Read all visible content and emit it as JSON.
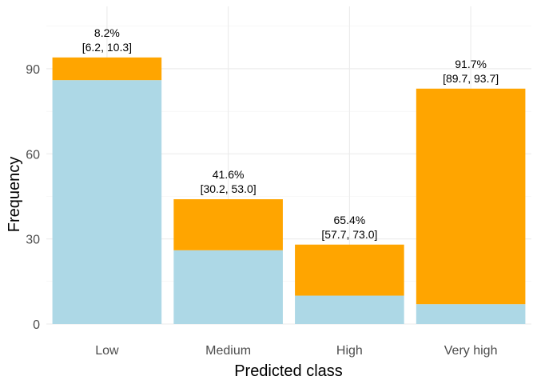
{
  "chart_data": {
    "type": "bar",
    "stacked": true,
    "categories": [
      "Low",
      "Medium",
      "High",
      "Very high"
    ],
    "series": [
      {
        "name": "",
        "color": "#add8e6",
        "values": [
          86,
          26,
          10,
          7
        ]
      },
      {
        "name": "",
        "color": "#ffa500",
        "values": [
          8,
          18,
          18,
          76
        ]
      }
    ],
    "annotations": [
      {
        "line1": "8.2%",
        "line2": "[6.2, 10.3]"
      },
      {
        "line1": "41.6%",
        "line2": "[30.2, 53.0]"
      },
      {
        "line1": "65.4%",
        "line2": "[57.7, 73.0]"
      },
      {
        "line1": "91.7%",
        "line2": "[89.7, 93.7]"
      }
    ],
    "xlabel": "Predicted class",
    "ylabel": "Frequency",
    "ylim": [
      0,
      112
    ],
    "yticks": [
      0,
      30,
      60,
      90
    ],
    "grid": true,
    "legend": "none"
  }
}
